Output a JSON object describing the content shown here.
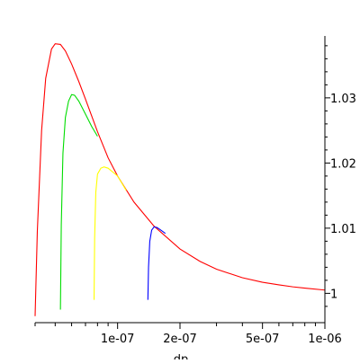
{
  "chart_data": {
    "type": "line",
    "title": "",
    "xlabel": "dp",
    "ylabel": "",
    "xscale": "log",
    "xlim": [
      4e-08,
      1e-06
    ],
    "ylim": [
      0.9955,
      1.0395
    ],
    "grid": false,
    "legend": "none",
    "x_tick_labels": [
      {
        "value": 1e-07,
        "label": "1e-07"
      },
      {
        "value": 2e-07,
        "label": "2e-07"
      },
      {
        "value": 5e-07,
        "label": "5e-07"
      },
      {
        "value": 1e-06,
        "label": "1e-06"
      }
    ],
    "x_minor_ticks": [
      4e-08,
      5e-08,
      6e-08,
      7e-08,
      8e-08,
      9e-08,
      3e-07,
      4e-07,
      6e-07,
      7e-07,
      8e-07,
      9e-07
    ],
    "y_tick_labels": [
      {
        "value": 1.0,
        "label": "1"
      },
      {
        "value": 1.01,
        "label": "1.01"
      },
      {
        "value": 1.02,
        "label": "1.02"
      },
      {
        "value": 1.03,
        "label": "1.03"
      }
    ],
    "y_minor_ticks": [
      0.998,
      1.002,
      1.004,
      1.006,
      1.008,
      1.012,
      1.014,
      1.016,
      1.018,
      1.022,
      1.024,
      1.026,
      1.028,
      1.032,
      1.034,
      1.036,
      1.038
    ],
    "series": [
      {
        "color": "#ff0000",
        "x": [
          4e-08,
          4.1e-08,
          4.3e-08,
          4.5e-08,
          4.8e-08,
          5e-08,
          5.3e-08,
          5.6e-08,
          6e-08,
          6.5e-08,
          7e-08,
          8e-08,
          9e-08,
          1e-07,
          1.2e-07,
          1.5e-07,
          2e-07,
          2.5e-07,
          3e-07,
          4e-07,
          5e-07,
          6e-07,
          7e-07,
          8e-07,
          1e-06
        ],
        "y": [
          0.9965,
          1.0095,
          1.025,
          1.033,
          1.0375,
          1.0383,
          1.0382,
          1.0372,
          1.0352,
          1.0325,
          1.0298,
          1.0248,
          1.0208,
          1.018,
          1.014,
          1.0103,
          1.0068,
          1.0049,
          1.0037,
          1.0024,
          1.0017,
          1.0013,
          1.001,
          1.0008,
          1.0005
        ]
      },
      {
        "color": "#00dd00",
        "x": [
          5.3e-08,
          5.35e-08,
          5.45e-08,
          5.6e-08,
          5.8e-08,
          6e-08,
          6.2e-08,
          6.5e-08,
          7e-08,
          7.5e-08,
          8e-08
        ],
        "y": [
          0.9975,
          1.0105,
          1.0215,
          1.027,
          1.0295,
          1.0305,
          1.0304,
          1.0295,
          1.0275,
          1.0256,
          1.0241
        ]
      },
      {
        "color": "#ffff00",
        "x": [
          7.7e-08,
          7.75e-08,
          7.85e-08,
          8e-08,
          8.3e-08,
          8.6e-08,
          9e-08,
          9.5e-08,
          1e-07,
          1.1e-07
        ],
        "y": [
          0.999,
          1.0085,
          1.0155,
          1.0183,
          1.0192,
          1.0194,
          1.0192,
          1.0186,
          1.018,
          1.0158
        ]
      },
      {
        "color": "#0000ff",
        "x": [
          1.4e-07,
          1.41e-07,
          1.43e-07,
          1.46e-07,
          1.5e-07,
          1.55e-07,
          1.6e-07,
          1.7e-07
        ],
        "y": [
          0.999,
          1.004,
          1.008,
          1.0097,
          1.0102,
          1.0101,
          1.0098,
          1.0092
        ]
      }
    ]
  }
}
